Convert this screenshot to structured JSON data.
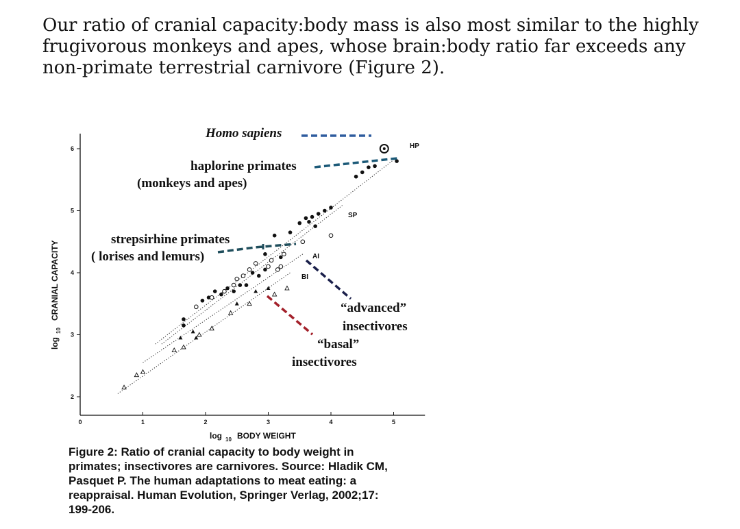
{
  "intro": {
    "line1": "Our ratio of cranial capacity:body mass is also most similar to the highly",
    "line2": "frugivorous monkeys and apes, whose brain:body ratio far exceeds any",
    "line3": "non-primate terrestrial carnivore (Figure 2)."
  },
  "chart_data": {
    "type": "scatter",
    "xlabel_main": "log",
    "xlabel_sub": "10",
    "xlabel_rest": "BODY WEIGHT",
    "ylabel_main": "log",
    "ylabel_sub": "10",
    "ylabel_rest": "CRANIAL CAPACITY",
    "xlim": [
      0,
      5.5
    ],
    "ylim": [
      1.6,
      6.1
    ],
    "x_ticks": [
      "0",
      "1",
      "2",
      "3",
      "4",
      "5"
    ],
    "y_ticks": [
      "2",
      "3",
      "4",
      "5",
      "6"
    ],
    "series": [
      {
        "name": "haplorine primates",
        "marker": "filled-circle",
        "points": [
          [
            1.65,
            3.25
          ],
          [
            1.65,
            3.15
          ],
          [
            1.95,
            3.55
          ],
          [
            2.05,
            3.6
          ],
          [
            2.15,
            3.7
          ],
          [
            2.25,
            3.65
          ],
          [
            2.35,
            3.75
          ],
          [
            2.45,
            3.7
          ],
          [
            2.55,
            3.8
          ],
          [
            2.65,
            3.8
          ],
          [
            2.75,
            4.0
          ],
          [
            2.85,
            3.95
          ],
          [
            2.95,
            4.05
          ],
          [
            3.05,
            4.2
          ],
          [
            2.95,
            4.3
          ],
          [
            3.1,
            4.6
          ],
          [
            3.35,
            4.65
          ],
          [
            3.5,
            4.8
          ],
          [
            3.6,
            4.88
          ],
          [
            3.65,
            4.82
          ],
          [
            3.7,
            4.9
          ],
          [
            3.8,
            4.95
          ],
          [
            3.9,
            5.0
          ],
          [
            4.0,
            5.05
          ],
          [
            3.75,
            4.75
          ],
          [
            4.4,
            5.55
          ],
          [
            4.5,
            5.62
          ],
          [
            4.6,
            5.7
          ],
          [
            4.7,
            5.72
          ],
          [
            5.05,
            5.8
          ],
          [
            3.2,
            4.25
          ]
        ]
      },
      {
        "name": "strepsirhine primates",
        "marker": "open-circle",
        "points": [
          [
            1.85,
            3.45
          ],
          [
            2.1,
            3.6
          ],
          [
            2.3,
            3.7
          ],
          [
            2.45,
            3.8
          ],
          [
            2.5,
            3.9
          ],
          [
            2.6,
            3.95
          ],
          [
            2.7,
            4.05
          ],
          [
            2.8,
            4.15
          ],
          [
            3.0,
            4.1
          ],
          [
            3.05,
            4.2
          ],
          [
            3.15,
            4.05
          ],
          [
            3.2,
            4.1
          ],
          [
            3.25,
            4.3
          ],
          [
            3.55,
            4.5
          ],
          [
            4.0,
            4.6
          ]
        ]
      },
      {
        "name": "insectivores",
        "marker": "open-triangle",
        "points": [
          [
            0.7,
            2.15
          ],
          [
            0.9,
            2.35
          ],
          [
            1.0,
            2.4
          ],
          [
            1.5,
            2.75
          ],
          [
            1.65,
            2.8
          ],
          [
            1.9,
            3.0
          ],
          [
            2.1,
            3.1
          ],
          [
            2.4,
            3.35
          ],
          [
            2.7,
            3.5
          ],
          [
            3.1,
            3.65
          ],
          [
            3.3,
            3.75
          ]
        ]
      },
      {
        "name": "insectivores-filled",
        "marker": "filled-triangle",
        "points": [
          [
            1.6,
            2.95
          ],
          [
            1.8,
            3.05
          ],
          [
            1.85,
            2.95
          ],
          [
            2.5,
            3.5
          ],
          [
            2.8,
            3.7
          ],
          [
            3.0,
            3.75
          ]
        ]
      },
      {
        "name": "Homo sapiens",
        "marker": "star-circle",
        "points": [
          [
            4.85,
            6.0
          ]
        ]
      }
    ],
    "regression_lines": [
      {
        "label": "HP",
        "from": [
          1.2,
          2.85
        ],
        "to": [
          5.0,
          5.82
        ]
      },
      {
        "label": "SP",
        "from": [
          1.3,
          2.85
        ],
        "to": [
          4.2,
          5.1
        ]
      },
      {
        "label": "AI",
        "from": [
          1.0,
          2.55
        ],
        "to": [
          3.55,
          4.3
        ]
      },
      {
        "label": "BI",
        "from": [
          0.6,
          2.05
        ],
        "to": [
          3.35,
          4.0
        ]
      }
    ],
    "annotations": {
      "homo": "Homo sapiens",
      "hap1": "haplorine primates",
      "hap2": "(monkeys and apes)",
      "strep1": "strepsirhine primates",
      "strep2": "( lorises and lemurs)",
      "adv1": "“advanced”",
      "adv2": "insectivores",
      "basal1": "“basal”",
      "basal2": "insectivores"
    },
    "colors": {
      "blue": "#2e5c9e",
      "teal": "#1c5a78",
      "strep": "#1f4e5c",
      "navy": "#1a1f4a",
      "red": "#a3202a"
    }
  },
  "caption": {
    "line1": "Figure 2: Ratio of cranial capacity to body weight in",
    "line2": "primates; insectivores are carnivores.  Source: Hladik CM,",
    "line3": "Pasquet P.  The human adaptations to meat eating: a",
    "line4": "reappraisal. Human Evolution, Springer Verlag, 2002;17:",
    "line5": "199-206."
  }
}
